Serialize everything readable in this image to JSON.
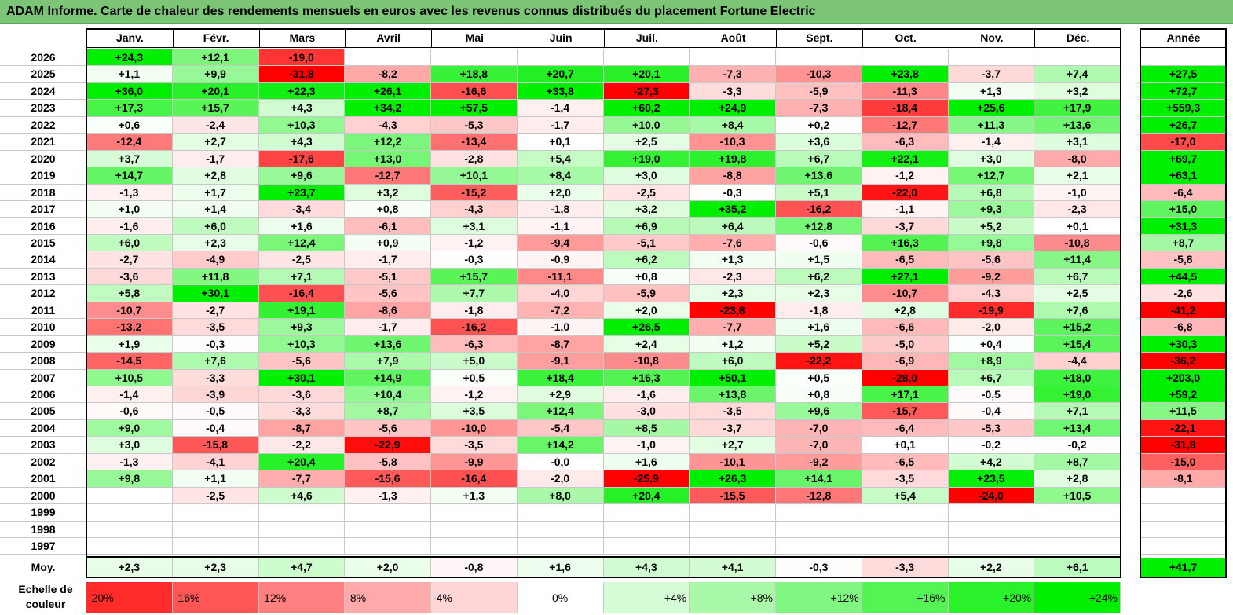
{
  "title": "ADAM Informe. Carte de chaleur des rendements mensuels en euros avec les revenus connus distribués du placement Fortune Electric",
  "colors": {
    "title_bar": "#7cc576",
    "negative_max": "#ff0000",
    "neutral": "#ffffff",
    "positive_max": "#00ee00"
  },
  "chart_data": {
    "type": "heatmap",
    "title": "ADAM Informe. Carte de chaleur des rendements mensuels en euros avec les revenus connus distribués du placement Fortune Electric",
    "months": [
      "Janv.",
      "Févr.",
      "Mars",
      "Avril",
      "Mai",
      "Juin",
      "Juil.",
      "Août",
      "Sept.",
      "Oct.",
      "Nov.",
      "Déc."
    ],
    "year_header": "Année",
    "average_label": "Moy.",
    "color_range": [
      -24,
      24
    ],
    "rows": [
      {
        "year": "2026",
        "months": [
          "+24,3",
          "+12,1",
          "-19,0",
          "",
          "",
          "",
          "",
          "",
          "",
          "",
          "",
          ""
        ],
        "annual": ""
      },
      {
        "year": "2025",
        "months": [
          "+1,1",
          "+9,9",
          "-31,8",
          "-8,2",
          "+18,8",
          "+20,7",
          "+20,1",
          "-7,3",
          "-10,3",
          "+23,8",
          "-3,7",
          "+7,4"
        ],
        "annual": "+27,5"
      },
      {
        "year": "2024",
        "months": [
          "+36,0",
          "+20,1",
          "+22,3",
          "+26,1",
          "-16,6",
          "+33,8",
          "-27,3",
          "-3,3",
          "-5,9",
          "-11,3",
          "+1,3",
          "+3,2"
        ],
        "annual": "+72,7"
      },
      {
        "year": "2023",
        "months": [
          "+17,3",
          "+15,7",
          "+4,3",
          "+34,2",
          "+57,5",
          "-1,4",
          "+60,2",
          "+24,9",
          "-7,3",
          "-18,4",
          "+25,6",
          "+17,9"
        ],
        "annual": "+559,3"
      },
      {
        "year": "2022",
        "months": [
          "+0,6",
          "-2,4",
          "+10,3",
          "-4,3",
          "-5,3",
          "-1,7",
          "+10,0",
          "+8,4",
          "+0,2",
          "-12,7",
          "+11,3",
          "+13,6"
        ],
        "annual": "+26,7"
      },
      {
        "year": "2021",
        "months": [
          "-12,4",
          "+2,7",
          "+4,3",
          "+12,2",
          "-13,4",
          "+0,1",
          "+2,5",
          "-10,3",
          "+3,6",
          "-6,3",
          "-1,4",
          "+3,1"
        ],
        "annual": "-17,0"
      },
      {
        "year": "2020",
        "months": [
          "+3,7",
          "-1,7",
          "-17,6",
          "+13,0",
          "-2,8",
          "+5,4",
          "+19,0",
          "+19,8",
          "+6,7",
          "+22,1",
          "+3,0",
          "-8,0"
        ],
        "annual": "+69,7"
      },
      {
        "year": "2019",
        "months": [
          "+14,7",
          "+2,8",
          "+9,6",
          "-12,7",
          "+10,1",
          "+8,4",
          "+3,0",
          "-8,8",
          "+13,6",
          "-1,2",
          "+12,7",
          "+2,1"
        ],
        "annual": "+63,1"
      },
      {
        "year": "2018",
        "months": [
          "-1,3",
          "+1,7",
          "+23,7",
          "+3,2",
          "-15,2",
          "+2,0",
          "-2,5",
          "-0,3",
          "+5,1",
          "-22,0",
          "+6,8",
          "-1,0"
        ],
        "annual": "-6,4"
      },
      {
        "year": "2017",
        "months": [
          "+1,0",
          "+1,4",
          "-3,4",
          "+0,8",
          "-4,3",
          "-1,8",
          "+3,2",
          "+35,2",
          "-16,2",
          "-1,1",
          "+9,3",
          "-2,3"
        ],
        "annual": "+15,0"
      },
      {
        "year": "2016",
        "months": [
          "-1,6",
          "+6,0",
          "+1,6",
          "-6,1",
          "+3,1",
          "-1,1",
          "+6,9",
          "+6,4",
          "+12,8",
          "-3,7",
          "+5,2",
          "+0,1"
        ],
        "annual": "+31,3"
      },
      {
        "year": "2015",
        "months": [
          "+6,0",
          "+2,3",
          "+12,4",
          "+0,9",
          "-1,2",
          "-9,4",
          "-5,1",
          "-7,6",
          "-0,6",
          "+16,3",
          "+9,8",
          "-10,8"
        ],
        "annual": "+8,7"
      },
      {
        "year": "2014",
        "months": [
          "-2,7",
          "-4,9",
          "-2,5",
          "-1,7",
          "-0,3",
          "-0,9",
          "+6,2",
          "+1,3",
          "+1,5",
          "-6,5",
          "-5,6",
          "+11,4"
        ],
        "annual": "-5,8"
      },
      {
        "year": "2013",
        "months": [
          "-3,6",
          "+11,8",
          "+7,1",
          "-5,1",
          "+15,7",
          "-11,1",
          "+0,8",
          "-2,3",
          "+6,2",
          "+27,1",
          "-9,2",
          "+6,7"
        ],
        "annual": "+44,5"
      },
      {
        "year": "2012",
        "months": [
          "+5,8",
          "+30,1",
          "-16,4",
          "-5,6",
          "+7,7",
          "-4,0",
          "-5,9",
          "+2,3",
          "+2,3",
          "-10,7",
          "-4,3",
          "+2,5"
        ],
        "annual": "-2,6"
      },
      {
        "year": "2011",
        "months": [
          "-10,7",
          "-2,7",
          "+19,1",
          "-8,6",
          "-1,8",
          "-7,2",
          "+2,0",
          "-23,8",
          "-1,8",
          "+2,8",
          "-19,9",
          "+7,6"
        ],
        "annual": "-41,2"
      },
      {
        "year": "2010",
        "months": [
          "-13,2",
          "-3,5",
          "+9,3",
          "-1,7",
          "-16,2",
          "-1,0",
          "+26,5",
          "-7,7",
          "+1,6",
          "-6,6",
          "-2,0",
          "+15,2"
        ],
        "annual": "-6,8"
      },
      {
        "year": "2009",
        "months": [
          "+1,9",
          "-0,3",
          "+10,3",
          "+13,6",
          "-6,3",
          "-8,7",
          "+2,4",
          "+1,2",
          "+5,2",
          "-5,0",
          "+0,4",
          "+15,4"
        ],
        "annual": "+30,3"
      },
      {
        "year": "2008",
        "months": [
          "-14,5",
          "+7,6",
          "-5,6",
          "+7,9",
          "+5,0",
          "-9,1",
          "-10,8",
          "+6,0",
          "-22,2",
          "-6,9",
          "+8,9",
          "-4,4"
        ],
        "annual": "-36,2"
      },
      {
        "year": "2007",
        "months": [
          "+10,5",
          "-3,3",
          "+30,1",
          "+14,9",
          "+0,5",
          "+18,4",
          "+16,3",
          "+50,1",
          "+0,5",
          "-28,0",
          "+6,7",
          "+18,0"
        ],
        "annual": "+203,0"
      },
      {
        "year": "2006",
        "months": [
          "-1,4",
          "-3,9",
          "-3,6",
          "+10,4",
          "-1,2",
          "+2,9",
          "-1,6",
          "+13,8",
          "+0,8",
          "+17,1",
          "-0,5",
          "+19,0"
        ],
        "annual": "+59,2"
      },
      {
        "year": "2005",
        "months": [
          "-0,6",
          "-0,5",
          "-3,3",
          "+8,7",
          "+3,5",
          "+12,4",
          "-3,0",
          "-3,5",
          "+9,6",
          "-15,7",
          "-0,4",
          "+7,1"
        ],
        "annual": "+11,5"
      },
      {
        "year": "2004",
        "months": [
          "+9,0",
          "-0,4",
          "-8,7",
          "-5,6",
          "-10,0",
          "-5,4",
          "+8,5",
          "-3,7",
          "-7,0",
          "-6,4",
          "-5,3",
          "+13,4"
        ],
        "annual": "-22,1"
      },
      {
        "year": "2003",
        "months": [
          "+3,0",
          "-15,8",
          "-2,2",
          "-22,9",
          "-3,5",
          "+14,2",
          "-1,0",
          "+2,7",
          "-7,0",
          "+0,1",
          "-0,2",
          "-0,2"
        ],
        "annual": "-31,8"
      },
      {
        "year": "2002",
        "months": [
          "-1,3",
          "-4,1",
          "+20,4",
          "-5,8",
          "-9,9",
          "-0,0",
          "+1,6",
          "-10,1",
          "-9,2",
          "-6,5",
          "+4,2",
          "+8,7"
        ],
        "annual": "-15,0"
      },
      {
        "year": "2001",
        "months": [
          "+9,8",
          "+1,1",
          "-7,7",
          "-15,6",
          "-16,4",
          "-2,0",
          "-25,9",
          "+26,3",
          "+14,1",
          "-3,5",
          "+23,5",
          "+2,8"
        ],
        "annual": "-8,1"
      },
      {
        "year": "2000",
        "months": [
          "",
          "-2,5",
          "+4,6",
          "-1,3",
          "+1,3",
          "+8,0",
          "+20,4",
          "-15,5",
          "-12,8",
          "+5,4",
          "-24,0",
          "+10,5"
        ],
        "annual": ""
      },
      {
        "year": "1999",
        "months": [
          "",
          "",
          "",
          "",
          "",
          "",
          "",
          "",
          "",
          "",
          "",
          ""
        ],
        "annual": ""
      },
      {
        "year": "1998",
        "months": [
          "",
          "",
          "",
          "",
          "",
          "",
          "",
          "",
          "",
          "",
          "",
          ""
        ],
        "annual": ""
      },
      {
        "year": "1997",
        "months": [
          "",
          "",
          "",
          "",
          "",
          "",
          "",
          "",
          "",
          "",
          "",
          ""
        ],
        "annual": ""
      }
    ],
    "averages": {
      "months": [
        "+2,3",
        "+2,3",
        "+4,7",
        "+2,0",
        "-0,8",
        "+1,6",
        "+4,3",
        "+4,1",
        "-0,3",
        "-3,3",
        "+2,2",
        "+6,1"
      ],
      "annual": "+41,7"
    },
    "scale": {
      "label": "Echelle de couleur",
      "steps": [
        {
          "label": "-20%",
          "value": -20
        },
        {
          "label": "-16%",
          "value": -16
        },
        {
          "label": "-12%",
          "value": -12
        },
        {
          "label": "-8%",
          "value": -8
        },
        {
          "label": "-4%",
          "value": -4
        },
        {
          "label": "0%",
          "value": 0
        },
        {
          "label": "+4%",
          "value": 4
        },
        {
          "label": "+8%",
          "value": 8
        },
        {
          "label": "+12%",
          "value": 12
        },
        {
          "label": "+16%",
          "value": 16
        },
        {
          "label": "+20%",
          "value": 20
        },
        {
          "label": "+24%",
          "value": 24
        }
      ]
    }
  }
}
